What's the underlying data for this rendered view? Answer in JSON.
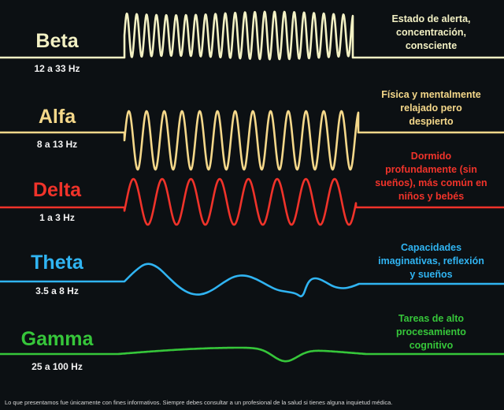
{
  "waves": [
    {
      "name": "Beta",
      "frequency": "12 a 33 Hz",
      "description": "Estado de alerta,\nconcentración,\nconsciente",
      "color": "#f3f1c4"
    },
    {
      "name": "Alfa",
      "frequency": "8 a 13 Hz",
      "description": "Física y mentalmente\nrelajado pero\ndespierto",
      "color": "#f5d88a"
    },
    {
      "name": "Delta",
      "frequency": "1 a 3 Hz",
      "description": "Dormido\nprofundamente (sin\nsueños), más común en\nniños y bebés",
      "color": "#f0332a"
    },
    {
      "name": "Theta",
      "frequency": "3.5 a 8 Hz",
      "description": "Capacidades\nimaginativas, reflexión\ny sueños",
      "color": "#30b4f2"
    },
    {
      "name": "Gamma",
      "frequency": "25 a 100 Hz",
      "description": "Tareas de alto\nprocesamiento\ncognitivo",
      "color": "#36c63a"
    }
  ],
  "disclaimer": "Lo que presentamos fue únicamente con fines informativos. Siempre debes consultar a un profesional de la salud si tienes alguna inquietud médica."
}
